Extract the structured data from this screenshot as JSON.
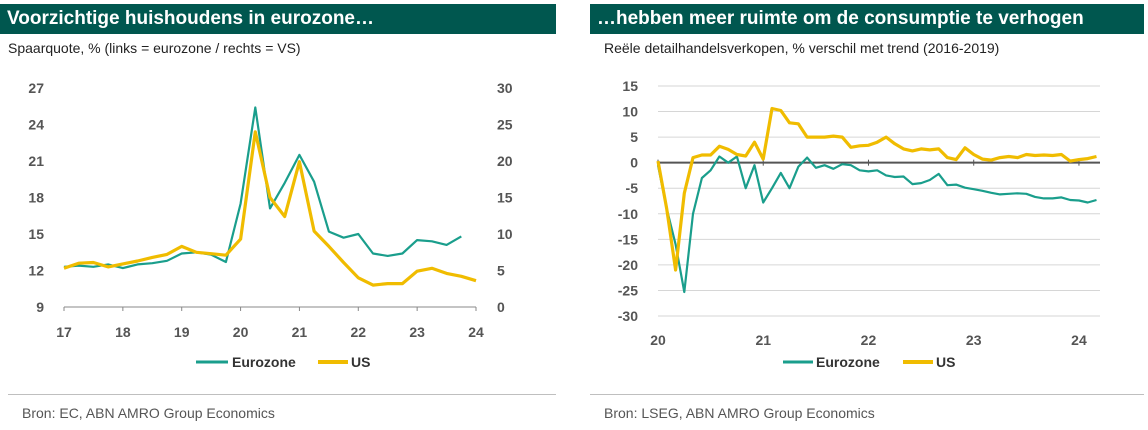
{
  "left": {
    "title": "Voorzichtige huishoudens in eurozone…",
    "subtitle": "Spaarquote, % (links = eurozone / rechts = VS)",
    "source": "Bron: EC, ABN AMRO Group Economics"
  },
  "right": {
    "title": "…hebben meer ruimte om de consumptie te verhogen",
    "subtitle": "Reële detailhandelsverkopen, % verschil met trend (2016-2019)",
    "source": "Bron: LSEG, ABN AMRO Group Economics"
  },
  "colors": {
    "eurozone": "#1a9e8c",
    "us": "#f0bc00",
    "titlebar": "#00574f"
  },
  "chart_data": [
    {
      "type": "line",
      "x_ticks": [
        "17",
        "18",
        "19",
        "20",
        "21",
        "22",
        "23",
        "24"
      ],
      "xlim": [
        2017,
        2024
      ],
      "y_left_ticks": [
        "27",
        "24",
        "21",
        "18",
        "15",
        "12",
        "9"
      ],
      "y_left_lim": [
        9,
        27
      ],
      "y_right_ticks": [
        "30",
        "25",
        "20",
        "15",
        "10",
        "5",
        "0"
      ],
      "y_right_lim": [
        0,
        30
      ],
      "legend": [
        "Eurozone",
        "US"
      ],
      "legend_position": "bottom",
      "series": [
        {
          "name": "Eurozone",
          "axis": "left",
          "x": [
            2017.0,
            2017.25,
            2017.5,
            2017.75,
            2018.0,
            2018.25,
            2018.5,
            2018.75,
            2019.0,
            2019.25,
            2019.5,
            2019.75,
            2020.0,
            2020.25,
            2020.5,
            2020.75,
            2021.0,
            2021.25,
            2021.5,
            2021.75,
            2022.0,
            2022.25,
            2022.5,
            2022.75,
            2023.0,
            2023.25,
            2023.5,
            2023.75
          ],
          "y": [
            12.3,
            12.4,
            12.3,
            12.5,
            12.2,
            12.5,
            12.6,
            12.8,
            13.4,
            13.5,
            13.3,
            12.7,
            17.5,
            25.4,
            17.1,
            19.2,
            21.5,
            19.3,
            15.2,
            14.7,
            15.0,
            13.4,
            13.2,
            13.4,
            14.5,
            14.4,
            14.1,
            14.8
          ]
        },
        {
          "name": "US",
          "axis": "right",
          "x": [
            2017.0,
            2017.25,
            2017.5,
            2017.75,
            2018.0,
            2018.25,
            2018.5,
            2018.75,
            2019.0,
            2019.25,
            2019.5,
            2019.75,
            2020.0,
            2020.25,
            2020.5,
            2020.75,
            2021.0,
            2021.25,
            2021.5,
            2021.75,
            2022.0,
            2022.25,
            2022.5,
            2022.75,
            2023.0,
            2023.25,
            2023.5,
            2023.75,
            2024.0
          ],
          "y": [
            5.3,
            6.0,
            6.1,
            5.5,
            5.9,
            6.3,
            6.8,
            7.2,
            8.3,
            7.5,
            7.3,
            7.1,
            9.3,
            24.0,
            15.0,
            12.4,
            19.9,
            10.4,
            8.3,
            6.1,
            4.0,
            3.0,
            3.2,
            3.2,
            4.9,
            5.3,
            4.6,
            4.2,
            3.6
          ]
        }
      ]
    },
    {
      "type": "line",
      "x_ticks": [
        "20",
        "21",
        "22",
        "23",
        "24"
      ],
      "xlim": [
        2020,
        2024.2
      ],
      "y_ticks": [
        "15",
        "10",
        "5",
        "0",
        "-5",
        "-10",
        "-15",
        "-20",
        "-25",
        "-30"
      ],
      "ylim": [
        -30,
        15
      ],
      "legend": [
        "Eurozone",
        "US"
      ],
      "legend_position": "bottom",
      "series": [
        {
          "name": "Eurozone",
          "x": [
            2020.0,
            2020.083,
            2020.167,
            2020.25,
            2020.333,
            2020.417,
            2020.5,
            2020.583,
            2020.667,
            2020.75,
            2020.833,
            2020.917,
            2021.0,
            2021.083,
            2021.167,
            2021.25,
            2021.333,
            2021.417,
            2021.5,
            2021.583,
            2021.667,
            2021.75,
            2021.833,
            2021.917,
            2022.0,
            2022.083,
            2022.167,
            2022.25,
            2022.333,
            2022.417,
            2022.5,
            2022.583,
            2022.667,
            2022.75,
            2022.833,
            2022.917,
            2023.0,
            2023.083,
            2023.167,
            2023.25,
            2023.333,
            2023.417,
            2023.5,
            2023.583,
            2023.667,
            2023.75,
            2023.833,
            2023.917,
            2024.0,
            2024.083,
            2024.167
          ],
          "y": [
            -0.5,
            -9,
            -16,
            -25.3,
            -10,
            -3,
            -1.5,
            1.2,
            0,
            1.2,
            -5,
            -0.5,
            -7.8,
            -5,
            -2,
            -5,
            -0.8,
            1,
            -1,
            -0.5,
            -1.2,
            -0.3,
            -0.5,
            -1.5,
            -1.7,
            -1.5,
            -2.5,
            -2.8,
            -2.7,
            -4.2,
            -4,
            -3.4,
            -2.2,
            -4.4,
            -4.3,
            -4.9,
            -5.2,
            -5.5,
            -5.9,
            -6.2,
            -6.1,
            -6,
            -6.1,
            -6.7,
            -7,
            -7,
            -6.8,
            -7.3,
            -7.4,
            -7.8,
            -7.3
          ]
        },
        {
          "name": "US",
          "x": [
            2020.0,
            2020.083,
            2020.167,
            2020.25,
            2020.333,
            2020.417,
            2020.5,
            2020.583,
            2020.667,
            2020.75,
            2020.833,
            2020.917,
            2021.0,
            2021.083,
            2021.167,
            2021.25,
            2021.333,
            2021.417,
            2021.5,
            2021.583,
            2021.667,
            2021.75,
            2021.833,
            2021.917,
            2022.0,
            2022.083,
            2022.167,
            2022.25,
            2022.333,
            2022.417,
            2022.5,
            2022.583,
            2022.667,
            2022.75,
            2022.833,
            2022.917,
            2023.0,
            2023.083,
            2023.167,
            2023.25,
            2023.333,
            2023.417,
            2023.5,
            2023.583,
            2023.667,
            2023.75,
            2023.833,
            2023.917,
            2024.0,
            2024.083,
            2024.167
          ],
          "y": [
            0.3,
            -9,
            -21,
            -6,
            1,
            1.5,
            1.5,
            3.2,
            2.6,
            1.6,
            1.3,
            4,
            0.7,
            10.6,
            10.2,
            7.8,
            7.6,
            5,
            5,
            5,
            5.2,
            5,
            3,
            3.3,
            3.4,
            4,
            5,
            3.7,
            2.7,
            2.3,
            2.7,
            2.5,
            2.7,
            1,
            0.6,
            2.9,
            1.6,
            0.7,
            0.5,
            1,
            1.2,
            1,
            1.6,
            1.4,
            1.5,
            1.4,
            1.6,
            0.3,
            0.6,
            0.8,
            1.2
          ]
        }
      ]
    }
  ]
}
